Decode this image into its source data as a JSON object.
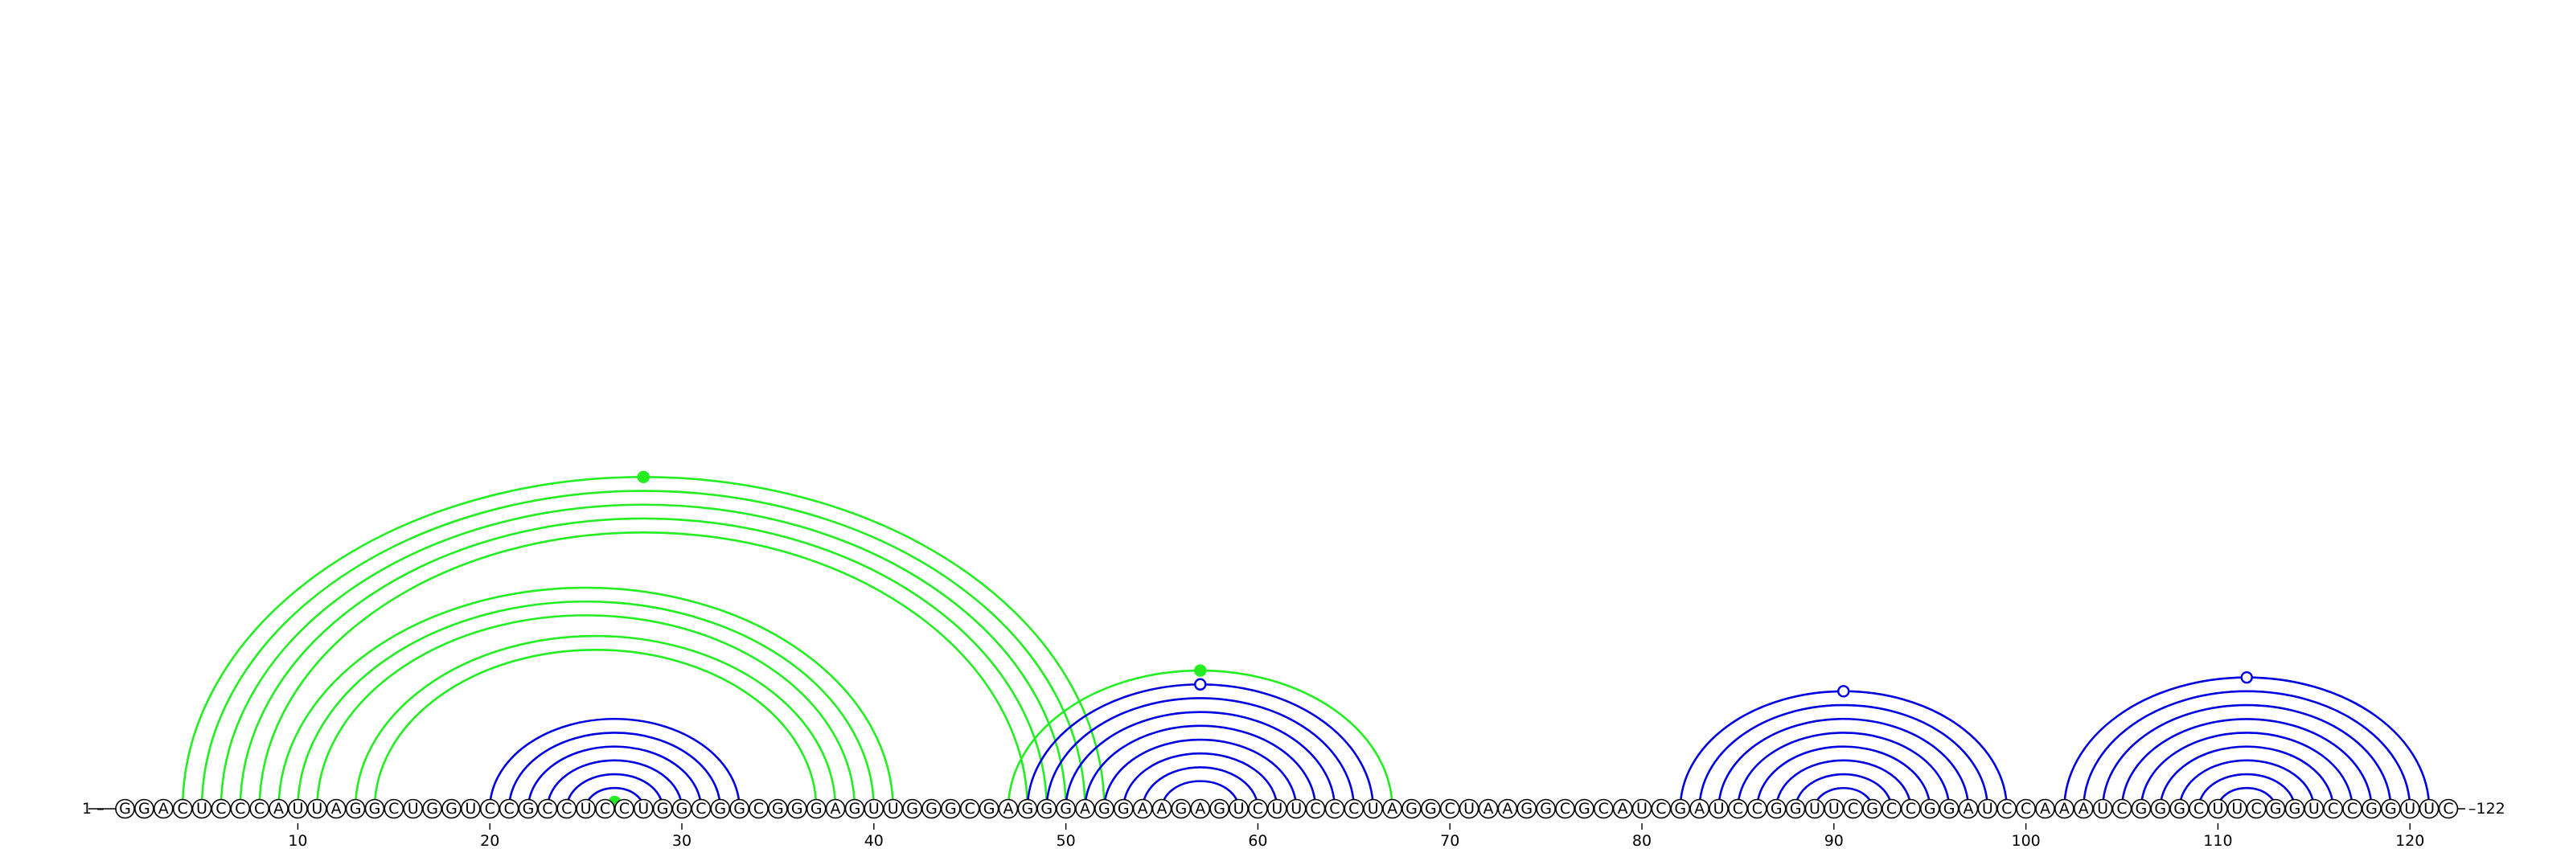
{
  "sequence": "GGACUCCCAUUAGGCUGGUCCGCCUCCUGGCGGCGGGAGUUGGGCGAGGGAGGAAGAGUCUUCCCUAGGCUAAGGCGCAUCGAUCCGGUUCGCCGGAUCCAAAUCGGGCUUCGGUCCGGUUC",
  "labels": {
    "start": "1 –",
    "end": "–122"
  },
  "tick_labels": [
    "10",
    "20",
    "30",
    "40",
    "50",
    "60",
    "70",
    "80",
    "90",
    "100",
    "110",
    "120"
  ],
  "colors": {
    "upper_helices": "#0000e0",
    "pseudoknot": "#22ee22",
    "nucleotide_outline": "#000000"
  },
  "helices": [
    {
      "color": "blue",
      "pairs": [
        [
          20,
          33
        ],
        [
          21,
          32
        ],
        [
          22,
          31
        ],
        [
          23,
          30
        ],
        [
          24,
          29
        ],
        [
          25,
          28
        ]
      ]
    },
    {
      "color": "green",
      "pairs": [
        [
          26,
          27
        ]
      ],
      "marker": "filled"
    },
    {
      "color": "green",
      "pairs": [
        [
          4,
          52
        ],
        [
          5,
          51
        ],
        [
          6,
          50
        ],
        [
          7,
          49
        ],
        [
          8,
          48
        ]
      ],
      "marker": "filled"
    },
    {
      "color": "green",
      "pairs": [
        [
          9,
          41
        ],
        [
          10,
          40
        ],
        [
          11,
          39
        ]
      ]
    },
    {
      "color": "green",
      "pairs": [
        [
          13,
          38
        ],
        [
          14,
          37
        ]
      ]
    },
    {
      "color": "green",
      "pairs": [
        [
          47,
          67
        ]
      ],
      "marker": "filled"
    },
    {
      "color": "blue",
      "pairs": [
        [
          48,
          66
        ],
        [
          49,
          65
        ],
        [
          50,
          64
        ],
        [
          51,
          63
        ],
        [
          52,
          62
        ],
        [
          53,
          61
        ],
        [
          54,
          60
        ],
        [
          55,
          59
        ]
      ],
      "marker": "open"
    },
    {
      "color": "blue",
      "pairs": [
        [
          82,
          99
        ],
        [
          83,
          98
        ],
        [
          84,
          97
        ],
        [
          85,
          96
        ],
        [
          86,
          95
        ],
        [
          87,
          94
        ],
        [
          88,
          93
        ],
        [
          89,
          92
        ]
      ],
      "marker": "open"
    },
    {
      "color": "blue",
      "pairs": [
        [
          102,
          121
        ],
        [
          103,
          120
        ],
        [
          104,
          119
        ],
        [
          105,
          118
        ],
        [
          106,
          117
        ],
        [
          107,
          116
        ],
        [
          108,
          115
        ],
        [
          109,
          114
        ],
        [
          110,
          113
        ]
      ],
      "marker": "open"
    }
  ]
}
